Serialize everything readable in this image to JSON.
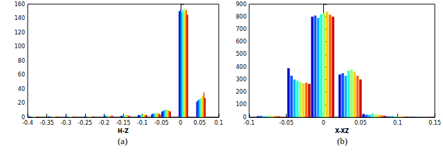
{
  "chart_data": [
    {
      "type": "bar",
      "caption": "(a)",
      "x_label": "H-Z",
      "xlim": [
        -0.4,
        0.1
      ],
      "xticks": [
        -0.4,
        -0.35,
        -0.3,
        -0.25,
        -0.2,
        -0.15,
        -0.1,
        -0.05,
        0,
        0.05,
        0.1
      ],
      "ylim": [
        0,
        160
      ],
      "yticks": [
        0,
        20,
        40,
        60,
        80,
        100,
        120,
        140,
        160
      ],
      "grid": false,
      "series": [
        {
          "color": "#0000d0",
          "x": [
            -0.395,
            -0.345,
            -0.3,
            -0.25,
            -0.2,
            -0.155,
            -0.11,
            -0.075,
            -0.048,
            -0.003,
            0.043
          ],
          "values": [
            1,
            1,
            1,
            1,
            1,
            2,
            3,
            4,
            8,
            150,
            22
          ]
        },
        {
          "color": "#0050ff",
          "x": [
            -0.392,
            -0.342,
            -0.297,
            -0.247,
            -0.197,
            -0.152,
            -0.107,
            -0.072,
            -0.045,
            0,
            0.046
          ],
          "values": [
            1,
            1,
            1,
            1,
            2,
            2,
            3,
            5,
            9,
            152,
            24
          ]
        },
        {
          "color": "#00b0ff",
          "x": [
            -0.389,
            -0.339,
            -0.294,
            -0.244,
            -0.194,
            -0.149,
            -0.104,
            -0.069,
            -0.042,
            0.003,
            0.049
          ],
          "values": [
            1,
            1,
            1,
            1,
            2,
            2,
            3,
            5,
            10,
            148,
            25
          ]
        },
        {
          "color": "#20ffd0",
          "x": [
            -0.386,
            -0.336,
            -0.291,
            -0.241,
            -0.191,
            -0.146,
            -0.101,
            -0.066,
            -0.039,
            0.006,
            0.052
          ],
          "values": [
            1,
            1,
            1,
            1,
            2,
            2,
            3,
            5,
            10,
            151,
            26
          ]
        },
        {
          "color": "#a0ff60",
          "x": [
            -0.383,
            -0.333,
            -0.288,
            -0.238,
            -0.188,
            -0.143,
            -0.098,
            -0.063,
            -0.036,
            0.009,
            0.055
          ],
          "values": [
            1,
            1,
            1,
            1,
            2,
            3,
            4,
            6,
            11,
            153,
            28
          ]
        },
        {
          "color": "#ffd000",
          "x": [
            -0.38,
            -0.33,
            -0.285,
            -0.235,
            -0.185,
            -0.14,
            -0.095,
            -0.06,
            -0.033,
            0.012,
            0.058
          ],
          "values": [
            1,
            1,
            1,
            1,
            2,
            3,
            4,
            6,
            10,
            149,
            30
          ]
        },
        {
          "color": "#ff6000",
          "x": [
            -0.377,
            -0.327,
            -0.282,
            -0.232,
            -0.182,
            -0.137,
            -0.092,
            -0.057,
            -0.03,
            0.015,
            0.061
          ],
          "values": [
            1,
            1,
            1,
            1,
            2,
            2,
            3,
            5,
            9,
            152,
            35
          ]
        },
        {
          "color": "#d00000",
          "x": [
            -0.374,
            -0.324,
            -0.279,
            -0.229,
            -0.179,
            -0.134,
            -0.089,
            -0.054,
            -0.027,
            0.018,
            0.064
          ],
          "values": [
            1,
            1,
            1,
            1,
            2,
            2,
            3,
            4,
            8,
            145,
            27
          ]
        }
      ]
    },
    {
      "type": "bar",
      "caption": "(b)",
      "x_label": "X-XZ",
      "xlim": [
        -0.1,
        0.15
      ],
      "xticks": [
        -0.1,
        -0.05,
        0,
        0.05,
        0.1,
        0.15
      ],
      "ylim": [
        0,
        900
      ],
      "yticks": [
        0,
        100,
        200,
        300,
        400,
        500,
        600,
        700,
        800,
        900
      ],
      "grid": false,
      "series": [
        {
          "color": "#0000d0",
          "x": [
            -0.088,
            -0.047,
            -0.015,
            0.022,
            0.054,
            0.085,
            0.118
          ],
          "values": [
            8,
            390,
            800,
            340,
            25,
            6,
            2
          ]
        },
        {
          "color": "#0050ff",
          "x": [
            -0.084,
            -0.043,
            -0.011,
            0.026,
            0.058,
            0.089,
            0.122
          ],
          "values": [
            10,
            330,
            810,
            350,
            20,
            5,
            2
          ]
        },
        {
          "color": "#00b0ff",
          "x": [
            -0.08,
            -0.039,
            -0.007,
            0.03,
            0.062,
            0.093,
            0.126
          ],
          "values": [
            6,
            300,
            790,
            330,
            18,
            8,
            1
          ]
        },
        {
          "color": "#20ffd0",
          "x": [
            -0.076,
            -0.035,
            -0.003,
            0.034,
            0.066,
            0.097,
            0.13
          ],
          "values": [
            9,
            290,
            820,
            370,
            30,
            6,
            2
          ]
        },
        {
          "color": "#a0ff60",
          "x": [
            -0.072,
            -0.031,
            0.001,
            0.038,
            0.07,
            0.101,
            0.134
          ],
          "values": [
            12,
            280,
            830,
            380,
            22,
            5,
            1
          ]
        },
        {
          "color": "#ffd000",
          "x": [
            -0.068,
            -0.027,
            0.005,
            0.042,
            0.074,
            0.105,
            0.138
          ],
          "values": [
            8,
            270,
            840,
            360,
            20,
            4,
            2
          ]
        },
        {
          "color": "#ff6000",
          "x": [
            -0.064,
            -0.023,
            0.009,
            0.046,
            0.078,
            0.109,
            0.142
          ],
          "values": [
            10,
            275,
            815,
            330,
            15,
            5,
            1
          ]
        },
        {
          "color": "#d00000",
          "x": [
            -0.06,
            -0.019,
            0.013,
            0.05,
            0.082,
            0.113,
            0.146
          ],
          "values": [
            7,
            265,
            800,
            300,
            12,
            3,
            1
          ]
        }
      ]
    }
  ]
}
